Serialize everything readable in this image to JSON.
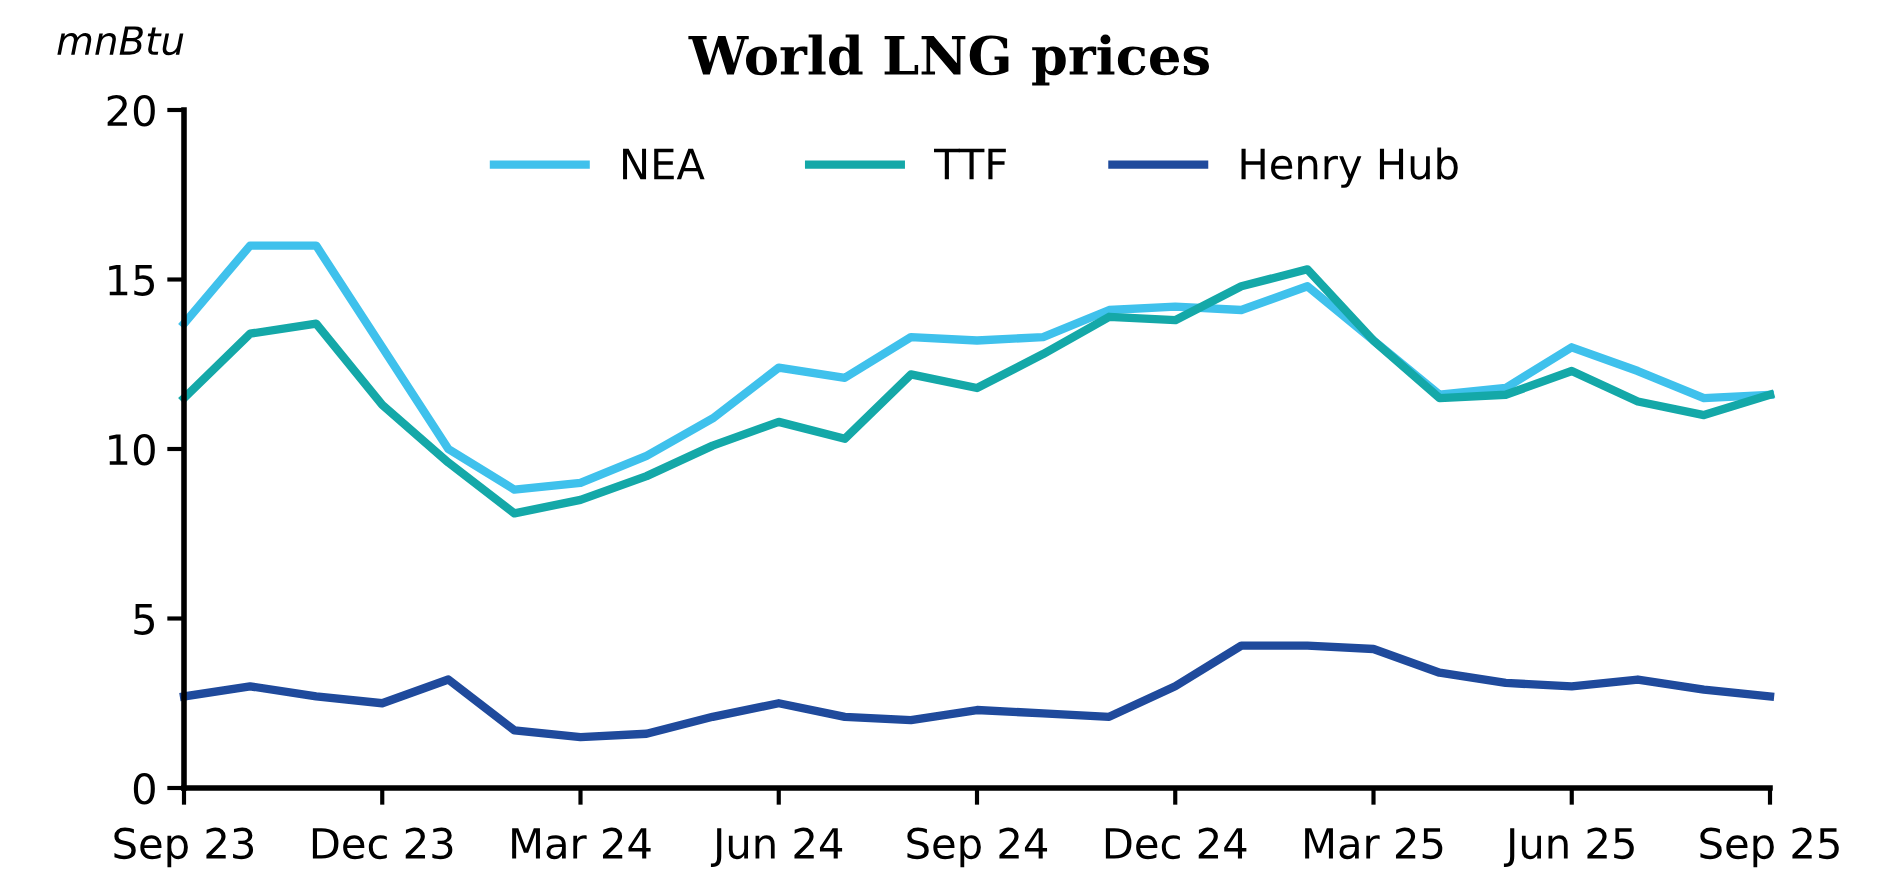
{
  "chart_data": {
    "type": "line",
    "title": "World LNG prices",
    "ylabel": "mnBtu",
    "categories": [
      "Sep 23",
      null,
      null,
      "Dec 23",
      null,
      null,
      "Mar 24",
      null,
      null,
      "Jun 24",
      null,
      null,
      "Sep 24",
      null,
      null,
      "Dec 24",
      null,
      null,
      "Mar 25",
      null,
      null,
      "Jun 25",
      null,
      null,
      "Sep 25"
    ],
    "series": [
      {
        "name": "NEA",
        "color": "#3fc1ec",
        "values": [
          13.7,
          16.0,
          16.0,
          13.0,
          10.0,
          8.8,
          9.0,
          9.8,
          10.9,
          12.4,
          12.1,
          13.3,
          13.2,
          13.3,
          14.1,
          14.2,
          14.1,
          14.8,
          13.2,
          11.6,
          11.8,
          13.0,
          12.3,
          11.5,
          11.6
        ]
      },
      {
        "name": "TTF",
        "color": "#14a8a8",
        "values": [
          11.5,
          13.4,
          13.7,
          11.3,
          9.6,
          8.1,
          8.5,
          9.2,
          10.1,
          10.8,
          10.3,
          12.2,
          11.8,
          12.8,
          13.9,
          13.8,
          14.8,
          15.3,
          13.2,
          11.5,
          11.6,
          12.3,
          11.4,
          11.0,
          11.6
        ]
      },
      {
        "name": "Henry Hub",
        "color": "#1f4a9c",
        "values": [
          2.7,
          3.0,
          2.7,
          2.5,
          3.2,
          1.7,
          1.5,
          1.6,
          2.1,
          2.5,
          2.1,
          2.0,
          2.3,
          2.2,
          2.1,
          3.0,
          4.2,
          4.2,
          4.1,
          3.4,
          3.1,
          3.0,
          3.2,
          2.9,
          2.7
        ]
      }
    ],
    "ylim": [
      0,
      20
    ],
    "yticks": [
      0,
      5,
      10,
      15,
      20
    ],
    "grid": false,
    "legend": "top",
    "marker": "none",
    "line_style": "solid"
  }
}
